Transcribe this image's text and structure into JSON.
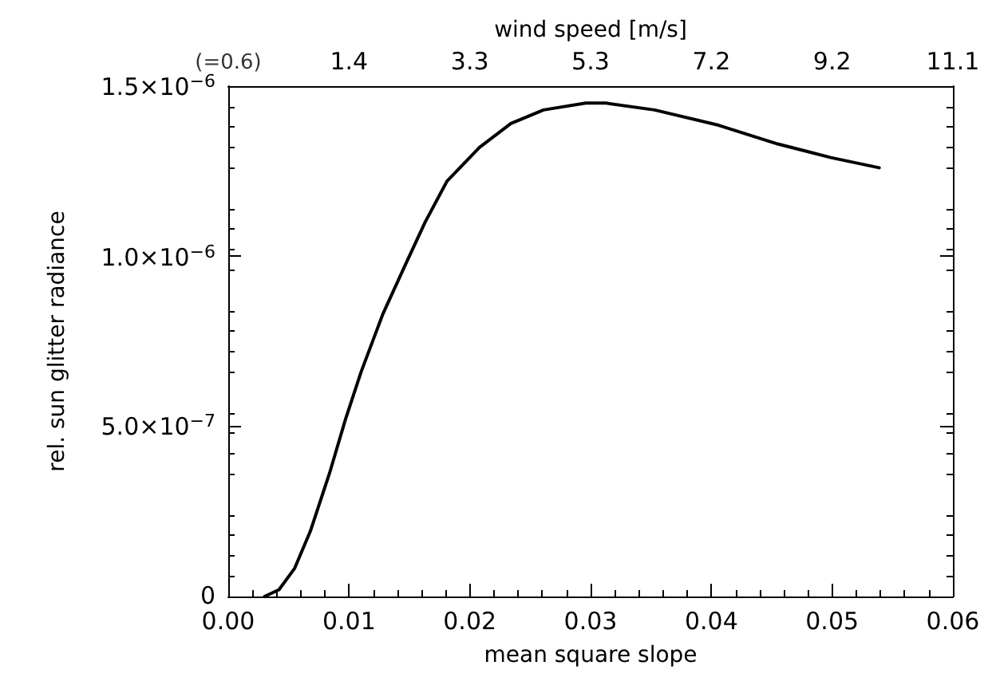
{
  "chart_data": {
    "type": "line",
    "xlabel": "mean square slope",
    "ylabel": "rel. sun glitter radiance",
    "x2label": "wind speed [m/s]",
    "x": [
      0.003,
      0.0042,
      0.0055,
      0.0068,
      0.0084,
      0.0097,
      0.011,
      0.0128,
      0.0146,
      0.0163,
      0.0181,
      0.0208,
      0.0234,
      0.0261,
      0.0296,
      0.0313,
      0.0353,
      0.0406,
      0.0455,
      0.0499,
      0.0539
    ],
    "series": [
      {
        "color": "#000000",
        "values": [
          0,
          2e-08,
          8.3e-08,
          1.92e-07,
          3.64e-07,
          5.2e-07,
          6.6e-07,
          8.3e-07,
          9.7e-07,
          1.1e-06,
          1.22e-06,
          1.32e-06,
          1.39e-06,
          1.43e-06,
          1.45e-06,
          1.45e-06,
          1.43e-06,
          1.385e-06,
          1.33e-06,
          1.29e-06,
          1.26e-06
        ]
      }
    ],
    "xlim": [
      0,
      0.06
    ],
    "xticks": [
      {
        "value": 0,
        "label": "0.00"
      },
      {
        "value": 0.01,
        "label": "0.01"
      },
      {
        "value": 0.02,
        "label": "0.02"
      },
      {
        "value": 0.03,
        "label": "0.03"
      },
      {
        "value": 0.04,
        "label": "0.04"
      },
      {
        "value": 0.05,
        "label": "0.05"
      },
      {
        "value": 0.06,
        "label": "0.06"
      }
    ],
    "ylim": [
      0,
      1.5e-06
    ],
    "yticks": [
      0,
      {
        "value": 5e-07,
        "label": "5.0×10$^{−7}$"
      },
      {
        "value": 1e-06,
        "label": "1.0×10$^{−6}$"
      },
      {
        "value": 1.5e-06,
        "label": "1.5×10$^{−6}$"
      }
    ],
    "x2lim": [
      -0.586,
      11.133
    ],
    "x2ticks": [
      {
        "value": -0.586,
        "label": "(=0.6)"
      },
      {
        "value": 1.367,
        "label": "1.4"
      },
      {
        "value": 3.32,
        "label": "3.3"
      },
      {
        "value": 5.273,
        "label": "5.3"
      },
      {
        "value": 7.227,
        "label": "7.2"
      },
      {
        "value": 9.18,
        "label": "9.2"
      },
      {
        "value": 11.133,
        "label": "11.1"
      }
    ],
    "grid": false,
    "marker": "none",
    "line_style": "solid"
  }
}
